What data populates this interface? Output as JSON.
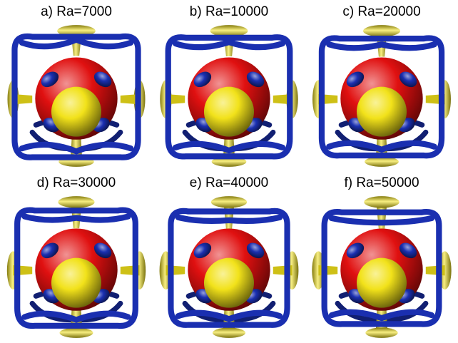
{
  "panels": [
    {
      "label": "a) Ra=7000"
    },
    {
      "label": "b) Ra=10000"
    },
    {
      "label": "c) Ra=20000"
    },
    {
      "label": "d) Ra=30000"
    },
    {
      "label": "e) Ra=40000"
    },
    {
      "label": "f) Ra=50000"
    }
  ],
  "colors": {
    "sphere": "#e01010",
    "core": "#f2e21a",
    "frame": "#1a2fb0",
    "lobes": "#1a2fb0",
    "background": "#ffffff"
  }
}
